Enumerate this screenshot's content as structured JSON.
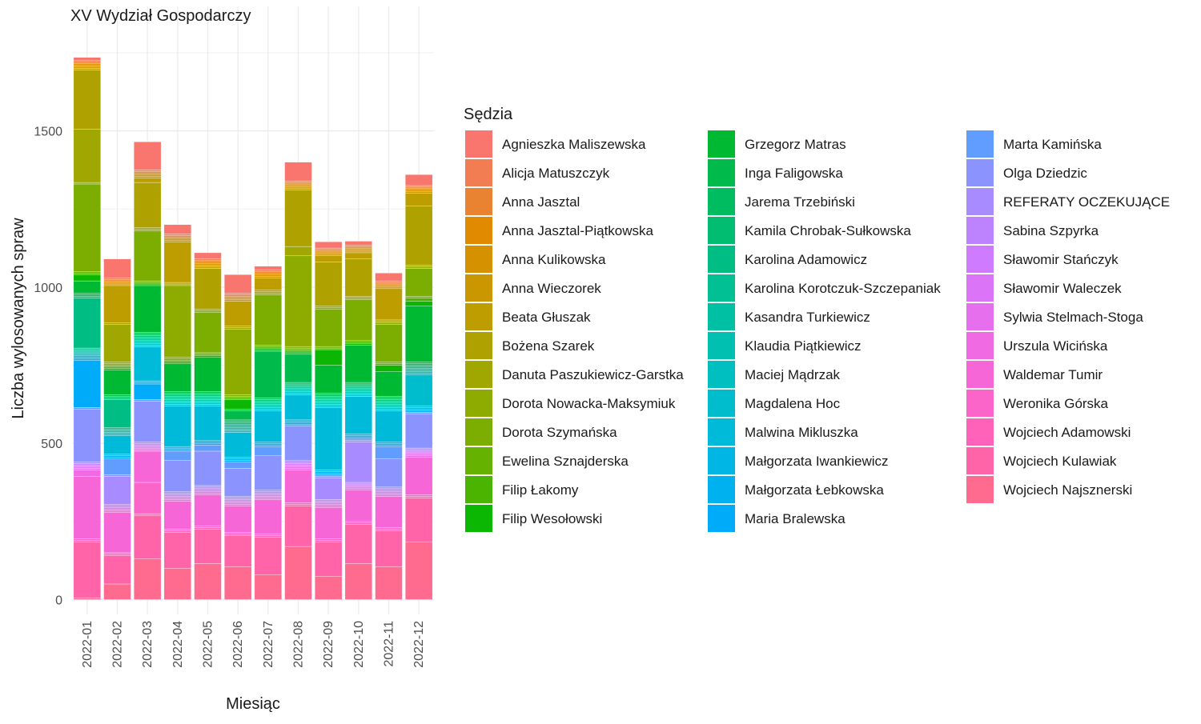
{
  "chart_data": {
    "type": "bar",
    "stacked": true,
    "title": "XV Wydział Gospodarczy",
    "xlabel": "Miesiąc",
    "ylabel": "Liczba wylosowanych spraw",
    "legend_title": "Sędzia",
    "legend_position": "right",
    "grid": true,
    "ylim": [
      0,
      1800
    ],
    "yticks": [
      0,
      500,
      1000,
      1500
    ],
    "categories": [
      "2022-01",
      "2022-02",
      "2022-03",
      "2022-04",
      "2022-05",
      "2022-06",
      "2022-07",
      "2022-08",
      "2022-09",
      "2022-10",
      "2022-11",
      "2022-12"
    ],
    "series": [
      {
        "name": "Agnieszka Maliszewska",
        "color": "#F8766D",
        "values": [
          10,
          60,
          90,
          30,
          20,
          60,
          12,
          60,
          20,
          12,
          25,
          35
        ]
      },
      {
        "name": "Alicja Matuszczyk",
        "color": "#F27D52",
        "values": [
          5,
          5,
          5,
          5,
          5,
          5,
          5,
          5,
          5,
          5,
          5,
          5
        ]
      },
      {
        "name": "Anna Jasztal",
        "color": "#EA8331",
        "values": [
          5,
          5,
          5,
          5,
          5,
          5,
          5,
          5,
          5,
          5,
          5,
          5
        ]
      },
      {
        "name": "Anna Jasztal-Piątkowska",
        "color": "#E18A00",
        "values": [
          5,
          5,
          5,
          5,
          5,
          5,
          5,
          5,
          5,
          5,
          5,
          5
        ]
      },
      {
        "name": "Anna Kulikowska",
        "color": "#D69100",
        "values": [
          5,
          5,
          5,
          5,
          5,
          5,
          5,
          5,
          5,
          5,
          5,
          5
        ]
      },
      {
        "name": "Anna Wieczorek",
        "color": "#CA9700",
        "values": [
          5,
          5,
          5,
          5,
          5,
          5,
          5,
          5,
          5,
          5,
          5,
          5
        ]
      },
      {
        "name": "Beata Głuszak",
        "color": "#BD9D00",
        "values": [
          5,
          120,
          15,
          130,
          5,
          80,
          40,
          5,
          20,
          20,
          100,
          40
        ]
      },
      {
        "name": "Bożena Szarek",
        "color": "#AFA200",
        "values": [
          190,
          5,
          145,
          5,
          130,
          5,
          5,
          180,
          140,
          120,
          5,
          190
        ]
      },
      {
        "name": "Danuta Paszukiewicz-Garstka",
        "color": "#9FA700",
        "values": [
          170,
          120,
          5,
          5,
          5,
          5,
          5,
          30,
          5,
          5,
          5,
          5
        ]
      },
      {
        "name": "Dorota Nowacka-Maksymiuk",
        "color": "#8EAB00",
        "values": [
          5,
          5,
          5,
          230,
          5,
          210,
          5,
          290,
          5,
          5,
          5,
          5
        ]
      },
      {
        "name": "Dorota Szymańska",
        "color": "#7BAE00",
        "values": [
          280,
          5,
          160,
          5,
          130,
          5,
          160,
          5,
          120,
          130,
          120,
          90
        ]
      },
      {
        "name": "Ewelina Sznajderska",
        "color": "#66B200",
        "values": [
          5,
          5,
          5,
          5,
          5,
          5,
          5,
          5,
          5,
          5,
          5,
          5
        ]
      },
      {
        "name": "Filip Łakomy",
        "color": "#4BB400",
        "values": [
          5,
          5,
          5,
          5,
          5,
          5,
          5,
          5,
          5,
          5,
          5,
          10
        ]
      },
      {
        "name": "Filip Wesołowski",
        "color": "#0BB702",
        "values": [
          20,
          5,
          5,
          5,
          5,
          30,
          5,
          5,
          50,
          5,
          20,
          15
        ]
      },
      {
        "name": "Grzegorz Matras",
        "color": "#00B933",
        "values": [
          40,
          80,
          150,
          90,
          110,
          5,
          5,
          5,
          90,
          120,
          80,
          180
        ]
      },
      {
        "name": "Inga Faligowska",
        "color": "#00BA4B",
        "values": [
          5,
          5,
          5,
          5,
          5,
          30,
          150,
          90,
          5,
          5,
          5,
          5
        ]
      },
      {
        "name": "Jarema Trzebiński",
        "color": "#00BC60",
        "values": [
          5,
          5,
          5,
          5,
          5,
          5,
          5,
          5,
          5,
          5,
          5,
          5
        ]
      },
      {
        "name": "Kamila Chrobak-Sułkowska",
        "color": "#00BD72",
        "values": [
          5,
          5,
          5,
          5,
          5,
          5,
          5,
          5,
          5,
          5,
          5,
          5
        ]
      },
      {
        "name": "Karolina Adamowicz",
        "color": "#00BE83",
        "values": [
          160,
          90,
          5,
          5,
          5,
          5,
          5,
          5,
          5,
          5,
          5,
          5
        ]
      },
      {
        "name": "Karolina Korotczuk-Szczepaniak",
        "color": "#00C094",
        "values": [
          5,
          5,
          5,
          5,
          5,
          5,
          5,
          5,
          5,
          5,
          5,
          5
        ]
      },
      {
        "name": "Kasandra Turkiewicz",
        "color": "#00C0A3",
        "values": [
          5,
          5,
          5,
          5,
          5,
          5,
          5,
          5,
          5,
          5,
          5,
          5
        ]
      },
      {
        "name": "Klaudia Piątkiewicz",
        "color": "#00C0B2",
        "values": [
          5,
          5,
          5,
          5,
          5,
          5,
          5,
          5,
          5,
          5,
          5,
          5
        ]
      },
      {
        "name": "Maciej Mądrzak",
        "color": "#00BFC0",
        "values": [
          5,
          5,
          5,
          5,
          5,
          5,
          5,
          5,
          5,
          5,
          5,
          5
        ]
      },
      {
        "name": "Magdalena Hoc",
        "color": "#00BDCD",
        "values": [
          5,
          5,
          5,
          5,
          5,
          5,
          5,
          5,
          5,
          5,
          5,
          100
        ]
      },
      {
        "name": "Malwina Mikluszka",
        "color": "#00BADA",
        "values": [
          5,
          60,
          110,
          130,
          110,
          80,
          100,
          80,
          200,
          120,
          100,
          5
        ]
      },
      {
        "name": "Małgorzata Iwankiewicz",
        "color": "#00B6E5",
        "values": [
          5,
          5,
          5,
          5,
          5,
          5,
          5,
          5,
          5,
          5,
          5,
          5
        ]
      },
      {
        "name": "Małgorzata Łebkowska",
        "color": "#00B1F0",
        "values": [
          5,
          5,
          5,
          5,
          5,
          5,
          5,
          5,
          5,
          5,
          5,
          5
        ]
      },
      {
        "name": "Maria Bralewska",
        "color": "#00ABFA",
        "values": [
          150,
          5,
          50,
          5,
          5,
          5,
          5,
          5,
          5,
          5,
          5,
          5
        ]
      },
      {
        "name": "Marta Kamińska",
        "color": "#619CFF",
        "values": [
          5,
          50,
          5,
          30,
          20,
          20,
          30,
          5,
          5,
          5,
          40,
          5
        ]
      },
      {
        "name": "Olga Dziedzic",
        "color": "#8B93FF",
        "values": [
          170,
          5,
          130,
          100,
          110,
          90,
          110,
          110,
          5,
          5,
          90,
          110
        ]
      },
      {
        "name": "REFERATY OCZEKUJĄCE",
        "color": "#A88BFF",
        "values": [
          5,
          90,
          5,
          5,
          5,
          5,
          5,
          5,
          70,
          130,
          5,
          5
        ]
      },
      {
        "name": "Sabina Szpyrka",
        "color": "#BD83FF",
        "values": [
          5,
          5,
          5,
          5,
          5,
          5,
          5,
          5,
          5,
          5,
          5,
          5
        ]
      },
      {
        "name": "Sławomir Stańczyk",
        "color": "#CE7BFF",
        "values": [
          5,
          5,
          5,
          5,
          5,
          5,
          5,
          5,
          5,
          5,
          5,
          5
        ]
      },
      {
        "name": "Sławomir Waleczek",
        "color": "#DB74F7",
        "values": [
          5,
          5,
          5,
          5,
          5,
          5,
          5,
          5,
          5,
          5,
          5,
          5
        ]
      },
      {
        "name": "Sylwia Stelmach-Stoga",
        "color": "#E66FEE",
        "values": [
          5,
          5,
          5,
          5,
          5,
          5,
          5,
          5,
          5,
          5,
          5,
          5
        ]
      },
      {
        "name": "Urszula Wicińska",
        "color": "#EF6AE3",
        "values": [
          20,
          5,
          5,
          5,
          5,
          5,
          5,
          5,
          5,
          5,
          5,
          5
        ]
      },
      {
        "name": "Waldemar Tumir",
        "color": "#F666D6",
        "values": [
          200,
          130,
          100,
          90,
          100,
          85,
          110,
          105,
          100,
          100,
          100,
          120
        ]
      },
      {
        "name": "Weronika Górska",
        "color": "#FB64C8",
        "values": [
          5,
          5,
          100,
          5,
          5,
          5,
          5,
          5,
          5,
          5,
          5,
          5
        ]
      },
      {
        "name": "Wojciech Adamowski",
        "color": "#FE63B9",
        "values": [
          5,
          5,
          5,
          5,
          5,
          5,
          5,
          5,
          5,
          5,
          5,
          5
        ]
      },
      {
        "name": "Wojciech Kulawiak",
        "color": "#FF64A8",
        "values": [
          180,
          90,
          140,
          115,
          110,
          100,
          120,
          130,
          110,
          125,
          115,
          140
        ]
      },
      {
        "name": "Wojciech Najsznerski",
        "color": "#FF6B8E",
        "values": [
          5,
          50,
          130,
          100,
          115,
          105,
          80,
          170,
          75,
          115,
          105,
          185
        ]
      }
    ]
  }
}
